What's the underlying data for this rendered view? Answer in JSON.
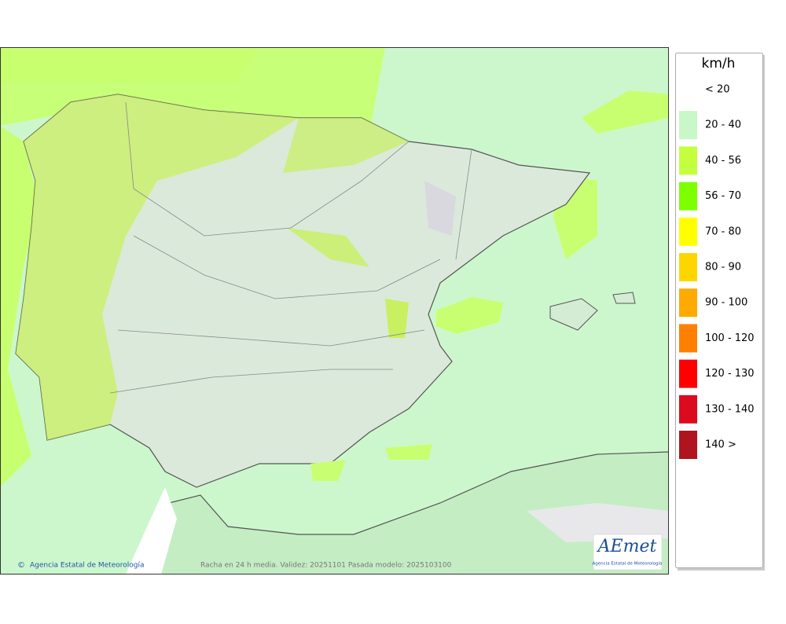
{
  "legend": {
    "unit": "km/h",
    "items": [
      {
        "label": "< 20"
      },
      {
        "label": "20 - 40",
        "color": "#c8f7c8"
      },
      {
        "label": "40 - 56",
        "color": "#c3ff3f"
      },
      {
        "label": "56 - 70",
        "color": "#7dff00"
      },
      {
        "label": "70 - 80",
        "color": "#ffff00"
      },
      {
        "label": "80 - 90",
        "color": "#ffd500"
      },
      {
        "label": "90 - 100",
        "color": "#ffaa00"
      },
      {
        "label": "100 - 120",
        "color": "#ff8000"
      },
      {
        "label": "120 - 130",
        "color": "#ff0000"
      },
      {
        "label": "130 - 140",
        "color": "#dc0a1e"
      },
      {
        "label": "140 >",
        "color": "#b0141e"
      }
    ]
  },
  "map": {
    "credit": "Agencia Estatal de Meteorología",
    "caption": "Racha en 24 h media. Validez: 20251101 Pasada modelo: 2025103100",
    "logo": {
      "name": "AEmet",
      "subtitle": "Agencia Estatal de Meteorología"
    }
  }
}
